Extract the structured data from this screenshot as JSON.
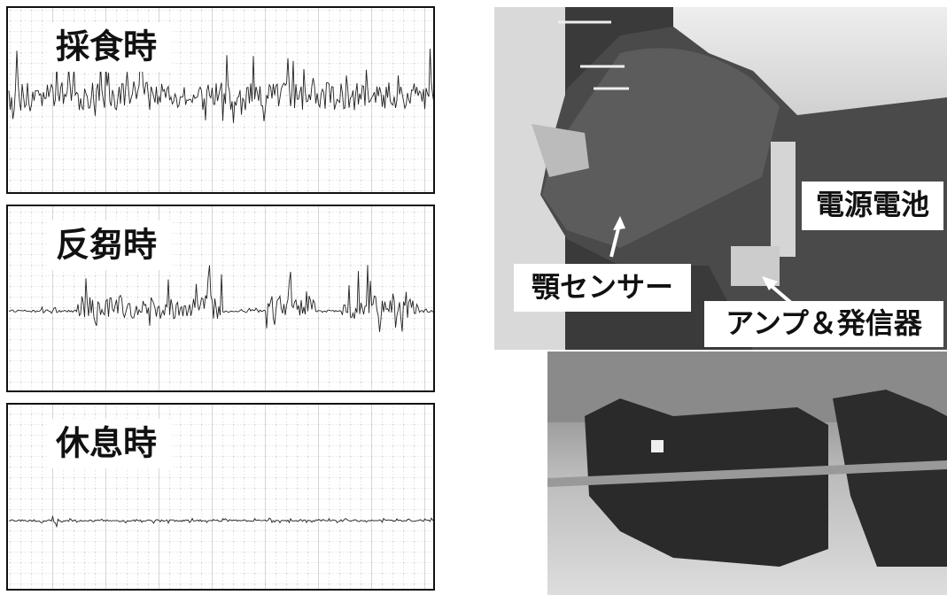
{
  "panels": [
    {
      "label": "採食時"
    },
    {
      "label": "反芻時"
    },
    {
      "label": "休息時"
    }
  ],
  "photo_labels": {
    "battery": "電源電池",
    "jaw_sensor": "顎センサー",
    "amplifier": "アンプ＆発信器"
  }
}
